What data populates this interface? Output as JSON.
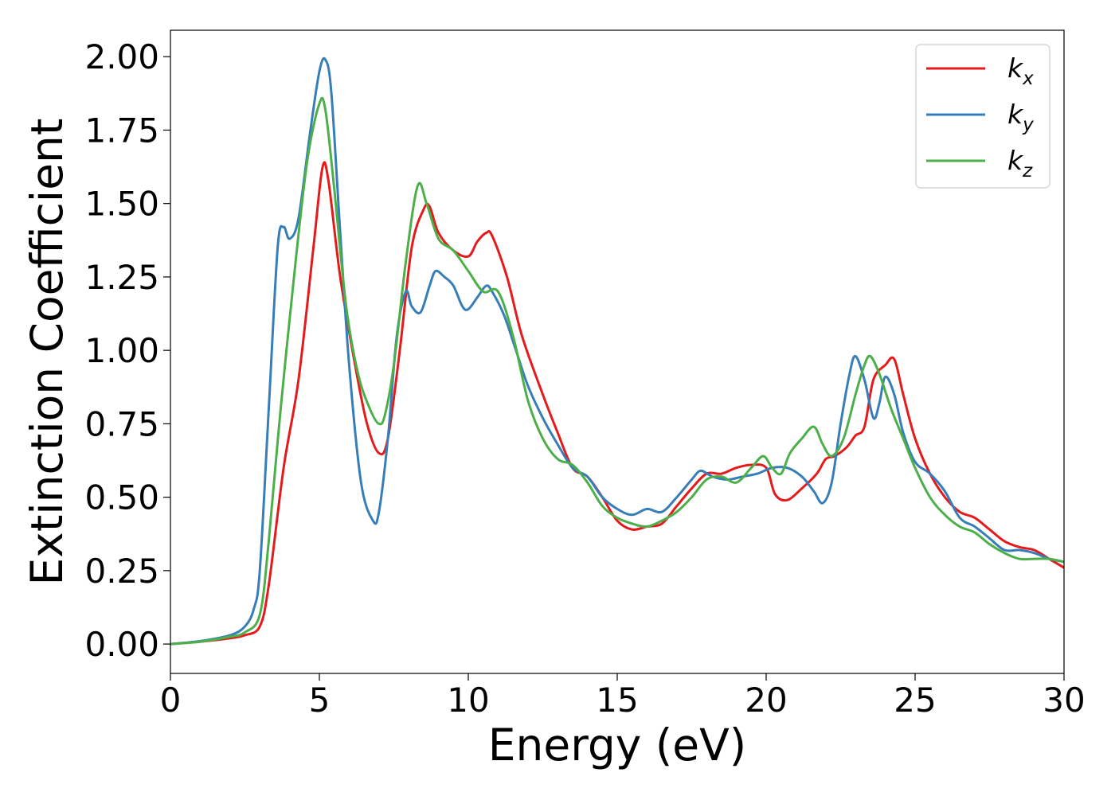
{
  "chart_data": {
    "type": "line",
    "xlabel": "Energy (eV)",
    "ylabel": "Extinction Coefficient",
    "xlim": [
      0,
      30
    ],
    "ylim": [
      -0.1,
      2.09
    ],
    "xticks": [
      0,
      5,
      10,
      15,
      20,
      25,
      30
    ],
    "xtick_labels": [
      "0",
      "5",
      "10",
      "15",
      "20",
      "25",
      "30"
    ],
    "yticks": [
      0,
      0.25,
      0.5,
      0.75,
      1.0,
      1.25,
      1.5,
      1.75,
      2.0
    ],
    "ytick_labels": [
      "0.00",
      "0.25",
      "0.50",
      "0.75",
      "1.00",
      "1.25",
      "1.50",
      "1.75",
      "2.00"
    ],
    "grid": false,
    "legend_position": "top-right",
    "series": [
      {
        "name": "k_x",
        "label_base": "k",
        "label_sub": "x",
        "color": "#e41a1c",
        "x": [
          0,
          1,
          2,
          2.5,
          3,
          3.3,
          3.8,
          4.3,
          4.8,
          5.1,
          5.3,
          5.7,
          6.2,
          6.6,
          7.0,
          7.3,
          7.7,
          8.1,
          8.5,
          8.7,
          9.0,
          9.5,
          10.0,
          10.3,
          10.6,
          10.8,
          11.3,
          11.8,
          12.5,
          13.0,
          13.5,
          14.0,
          14.5,
          15.0,
          15.5,
          16.0,
          16.5,
          17.0,
          17.5,
          18.0,
          18.5,
          19.0,
          19.5,
          20.0,
          20.3,
          20.7,
          21.2,
          21.7,
          22.0,
          22.3,
          22.7,
          23.0,
          23.3,
          23.6,
          24.0,
          24.3,
          24.6,
          25.0,
          25.5,
          26.0,
          26.5,
          27.0,
          27.5,
          28.0,
          28.5,
          29.0,
          29.5,
          30.0
        ],
        "y": [
          0,
          0.008,
          0.02,
          0.03,
          0.06,
          0.2,
          0.6,
          0.9,
          1.35,
          1.62,
          1.58,
          1.25,
          0.95,
          0.75,
          0.65,
          0.7,
          1.0,
          1.35,
          1.48,
          1.49,
          1.4,
          1.34,
          1.32,
          1.37,
          1.4,
          1.39,
          1.25,
          1.05,
          0.85,
          0.72,
          0.6,
          0.57,
          0.5,
          0.42,
          0.39,
          0.4,
          0.41,
          0.47,
          0.53,
          0.58,
          0.58,
          0.6,
          0.61,
          0.6,
          0.51,
          0.49,
          0.53,
          0.58,
          0.63,
          0.64,
          0.67,
          0.71,
          0.74,
          0.9,
          0.95,
          0.97,
          0.85,
          0.7,
          0.58,
          0.5,
          0.45,
          0.43,
          0.39,
          0.35,
          0.33,
          0.32,
          0.29,
          0.26
        ]
      },
      {
        "name": "k_y",
        "label_base": "k",
        "label_sub": "y",
        "color": "#377eb8",
        "x": [
          0,
          1,
          2,
          2.5,
          2.8,
          3.0,
          3.3,
          3.6,
          3.8,
          4.0,
          4.3,
          4.7,
          5.0,
          5.2,
          5.4,
          5.7,
          6.0,
          6.4,
          6.8,
          7.0,
          7.3,
          7.6,
          7.9,
          8.1,
          8.4,
          8.7,
          8.9,
          9.2,
          9.5,
          9.8,
          10.0,
          10.3,
          10.6,
          10.8,
          11.2,
          11.6,
          12.0,
          12.5,
          13.0,
          13.5,
          14.0,
          14.5,
          15.0,
          15.5,
          16.0,
          16.5,
          17.0,
          17.5,
          17.8,
          18.2,
          18.7,
          19.2,
          19.7,
          20.2,
          20.7,
          21.2,
          21.6,
          21.9,
          22.2,
          22.5,
          22.8,
          23.0,
          23.3,
          23.6,
          23.8,
          24.0,
          24.3,
          24.6,
          25.0,
          25.5,
          26.0,
          26.5,
          27.0,
          27.5,
          28.0,
          28.5,
          29.0,
          29.5,
          30.0
        ],
        "y": [
          0,
          0.01,
          0.03,
          0.06,
          0.12,
          0.25,
          0.8,
          1.35,
          1.42,
          1.38,
          1.45,
          1.75,
          1.95,
          1.99,
          1.88,
          1.4,
          0.95,
          0.55,
          0.42,
          0.45,
          0.7,
          1.05,
          1.2,
          1.15,
          1.13,
          1.22,
          1.27,
          1.25,
          1.22,
          1.15,
          1.14,
          1.18,
          1.22,
          1.2,
          1.12,
          1.0,
          0.88,
          0.77,
          0.68,
          0.6,
          0.57,
          0.5,
          0.46,
          0.44,
          0.46,
          0.45,
          0.5,
          0.56,
          0.59,
          0.57,
          0.56,
          0.57,
          0.58,
          0.6,
          0.6,
          0.57,
          0.52,
          0.48,
          0.55,
          0.75,
          0.92,
          0.98,
          0.9,
          0.77,
          0.82,
          0.91,
          0.85,
          0.72,
          0.62,
          0.58,
          0.52,
          0.43,
          0.4,
          0.36,
          0.32,
          0.32,
          0.31,
          0.29,
          0.28
        ]
      },
      {
        "name": "k_z",
        "label_base": "k",
        "label_sub": "z",
        "color": "#4daf4a",
        "x": [
          0,
          1,
          2,
          2.5,
          3.0,
          3.3,
          3.7,
          4.2,
          4.6,
          5.0,
          5.2,
          5.5,
          5.9,
          6.3,
          6.7,
          7.0,
          7.2,
          7.5,
          7.9,
          8.3,
          8.6,
          9.0,
          9.5,
          10.0,
          10.5,
          11.0,
          11.5,
          12.0,
          12.5,
          13.0,
          13.5,
          14.0,
          14.5,
          15.0,
          15.5,
          16.0,
          16.5,
          17.0,
          17.5,
          18.0,
          18.5,
          19.0,
          19.5,
          19.9,
          20.2,
          20.5,
          20.8,
          21.2,
          21.6,
          21.9,
          22.2,
          22.6,
          23.0,
          23.3,
          23.5,
          23.8,
          24.2,
          24.6,
          25.0,
          25.5,
          26.0,
          26.5,
          27.0,
          27.5,
          28.0,
          28.5,
          29.0,
          29.5,
          30.0
        ],
        "y": [
          0,
          0.008,
          0.025,
          0.04,
          0.1,
          0.35,
          0.8,
          1.3,
          1.65,
          1.84,
          1.82,
          1.55,
          1.15,
          0.92,
          0.8,
          0.75,
          0.78,
          0.95,
          1.3,
          1.56,
          1.5,
          1.38,
          1.34,
          1.27,
          1.2,
          1.2,
          1.05,
          0.83,
          0.7,
          0.63,
          0.61,
          0.55,
          0.47,
          0.43,
          0.41,
          0.4,
          0.42,
          0.45,
          0.5,
          0.56,
          0.57,
          0.55,
          0.6,
          0.64,
          0.6,
          0.58,
          0.65,
          0.7,
          0.74,
          0.68,
          0.64,
          0.7,
          0.85,
          0.95,
          0.98,
          0.92,
          0.8,
          0.7,
          0.6,
          0.5,
          0.44,
          0.4,
          0.38,
          0.34,
          0.31,
          0.29,
          0.29,
          0.29,
          0.28
        ]
      }
    ]
  }
}
